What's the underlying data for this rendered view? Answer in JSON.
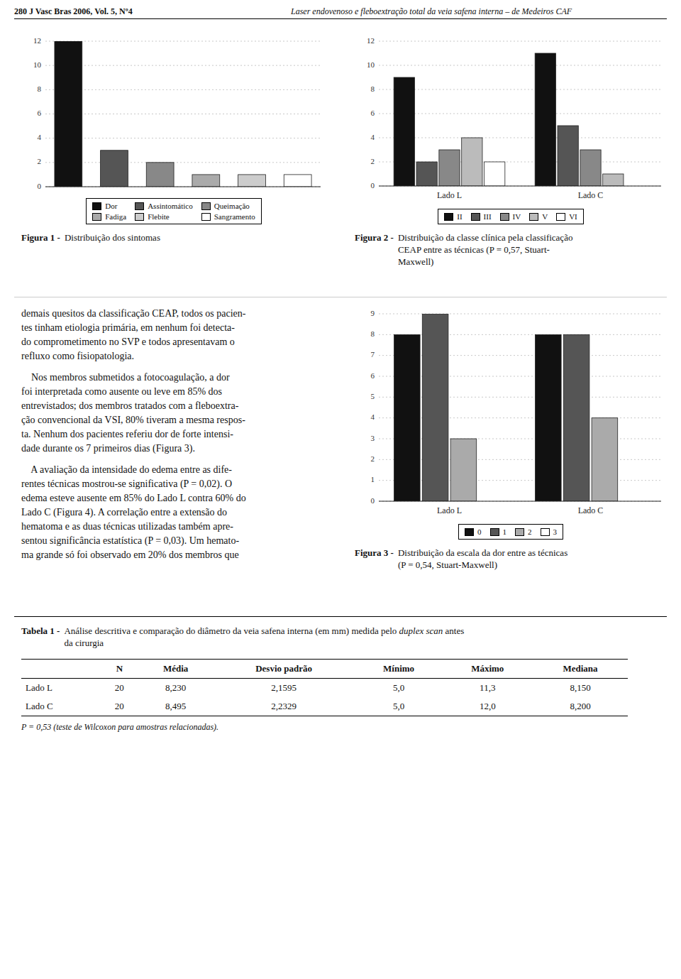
{
  "chart_data": [
    {
      "type": "bar",
      "title": "Figura 1 -",
      "subtitle": [
        "Distribuição dos sintomas"
      ],
      "categories": [
        "Dor",
        "Assintomático",
        "Queimação",
        "Fadiga",
        "Flebite",
        "Sangramento"
      ],
      "values": [
        12,
        3,
        2,
        1,
        1,
        1
      ],
      "colors": [
        "#111111",
        "#555555",
        "#888888",
        "#aaaaaa",
        "#cccccc",
        "#ffffff"
      ],
      "ylim": [
        0,
        12
      ],
      "yticks": [
        0,
        2,
        4,
        6,
        8,
        10,
        12
      ],
      "grid": true,
      "legend": "bottom",
      "tick_labels": "y"
    },
    {
      "type": "bar",
      "title": "Figura 2 -",
      "subtitle": [
        "Distribuição da classe clínica pela classificação",
        "CEAP entre as técnicas (P = 0,57, Stuart-",
        "Maxwell)"
      ],
      "categories": [
        "Lado L",
        "Lado C"
      ],
      "series": [
        {
          "name": "II",
          "color": "#111111",
          "values": [
            9,
            11
          ]
        },
        {
          "name": "III",
          "color": "#555555",
          "values": [
            2,
            5
          ]
        },
        {
          "name": "IV",
          "color": "#888888",
          "values": [
            3,
            3
          ]
        },
        {
          "name": "V",
          "color": "#bbbbbb",
          "values": [
            4,
            1
          ]
        },
        {
          "name": "VI",
          "color": "#ffffff",
          "values": [
            2,
            0
          ]
        }
      ],
      "ylim": [
        0,
        12
      ],
      "yticks": [
        0,
        2,
        4,
        6,
        8,
        10,
        12
      ],
      "grid": true,
      "legend": "bottom"
    },
    {
      "type": "bar",
      "title": "Figura 3 -",
      "subtitle": [
        "Distribuição da escala da dor entre as técnicas",
        "(P = 0,54, Stuart-Maxwell)"
      ],
      "categories": [
        "Lado L",
        "Lado C"
      ],
      "series": [
        {
          "name": "0",
          "color": "#111111",
          "values": [
            8,
            8
          ]
        },
        {
          "name": "1",
          "color": "#555555",
          "values": [
            9,
            8
          ]
        },
        {
          "name": "2",
          "color": "#aaaaaa",
          "values": [
            3,
            4
          ]
        },
        {
          "name": "3",
          "color": "#ffffff",
          "values": [
            0,
            0
          ]
        }
      ],
      "ylim": [
        0,
        9
      ],
      "yticks": [
        0,
        1,
        2,
        3,
        4,
        5,
        6,
        7,
        8,
        9
      ],
      "grid": true,
      "legend": "bottom"
    }
  ],
  "header": {
    "left": "280  J Vasc Bras 2006, Vol. 5, Nº4",
    "right": "Laser endovenoso e fleboextração total da veia safena interna – de Medeiros CAF"
  },
  "text": {
    "paragraphs": [
      [
        "demais quesitos da classificação CEAP, todos os pacien-",
        "tes tinham etiologia primária, em nenhum foi detecta-",
        "do comprometimento no SVP e todos apresentavam o",
        "refluxo como fisiopatologia."
      ],
      [
        "    Nos membros submetidos a fotocoagulação, a dor",
        "foi interpretada como ausente ou leve em 85% dos",
        "entrevistados; dos membros tratados com a fleboextra-",
        "ção convencional da VSI, 80% tiveram a mesma respos-",
        "ta. Nenhum dos pacientes referiu dor de forte intensi-",
        "dade durante os 7 primeiros dias (Figura 3)."
      ],
      [
        "    A avaliação da intensidade do edema entre as dife-",
        "rentes técnicas mostrou-se significativa (P = 0,02). O",
        "edema esteve ausente em 85% do Lado L contra 60% do",
        "Lado C (Figura 4). A correlação entre a extensão do",
        "hematoma e as duas técnicas utilizadas também apre-",
        "sentou significância estatística (P = 0,03). Um hemato-",
        "ma grande só foi observado em 20% dos membros que"
      ]
    ]
  },
  "table": {
    "title": "Tabela 1 -",
    "caption": "Análise descritiva e comparação do diâmetro da veia safena interna (em mm) medida pelo",
    "caption_italic": "duplex scan",
    "caption2": "antes",
    "caption3": "da cirurgia",
    "columns": [
      "N",
      "Média",
      "Desvio padrão",
      "Mínimo",
      "Máximo",
      "Mediana"
    ],
    "rows": [
      [
        "Lado L",
        "20",
        "8,230",
        "2,1595",
        "5,0",
        "11,3",
        "8,150"
      ],
      [
        "Lado C",
        "20",
        "8,495",
        "2,2329",
        "5,0",
        "12,0",
        "8,200"
      ]
    ],
    "footnote": "P = 0,53 (teste de Wilcoxon para amostras relacionadas)."
  }
}
